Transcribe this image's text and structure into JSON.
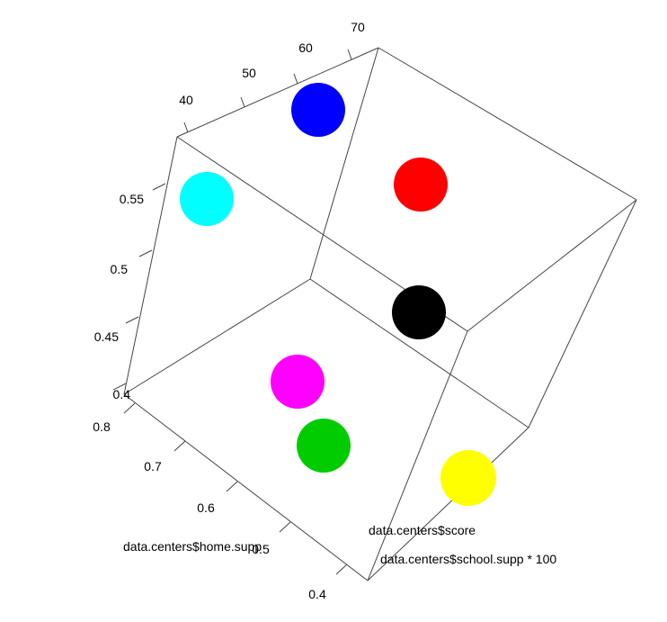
{
  "chart_data": {
    "type": "scatter",
    "projection": "3d",
    "axes": {
      "x": {
        "label": "data.centers$school.supp * 100",
        "ticks": [
          "40",
          "50",
          "60",
          "70"
        ]
      },
      "y": {
        "label": "data.centers$home.supp",
        "ticks": [
          "0.4",
          "0.5",
          "0.6",
          "0.7",
          "0.8"
        ]
      },
      "z": {
        "label": "data.centers$score",
        "ticks": [
          "0.4",
          "0.45",
          "0.5",
          "0.55"
        ]
      }
    },
    "grid": false,
    "legend": "none",
    "points": [
      {
        "color": "#0000FF",
        "name": "blue-point"
      },
      {
        "color": "#FF0000",
        "name": "red-point"
      },
      {
        "color": "#00FFFF",
        "name": "cyan-point"
      },
      {
        "color": "#000000",
        "name": "black-point"
      },
      {
        "color": "#FF00FF",
        "name": "magenta-point"
      },
      {
        "color": "#00CC00",
        "name": "green-point"
      },
      {
        "color": "#FFFF00",
        "name": "yellow-point"
      }
    ]
  }
}
